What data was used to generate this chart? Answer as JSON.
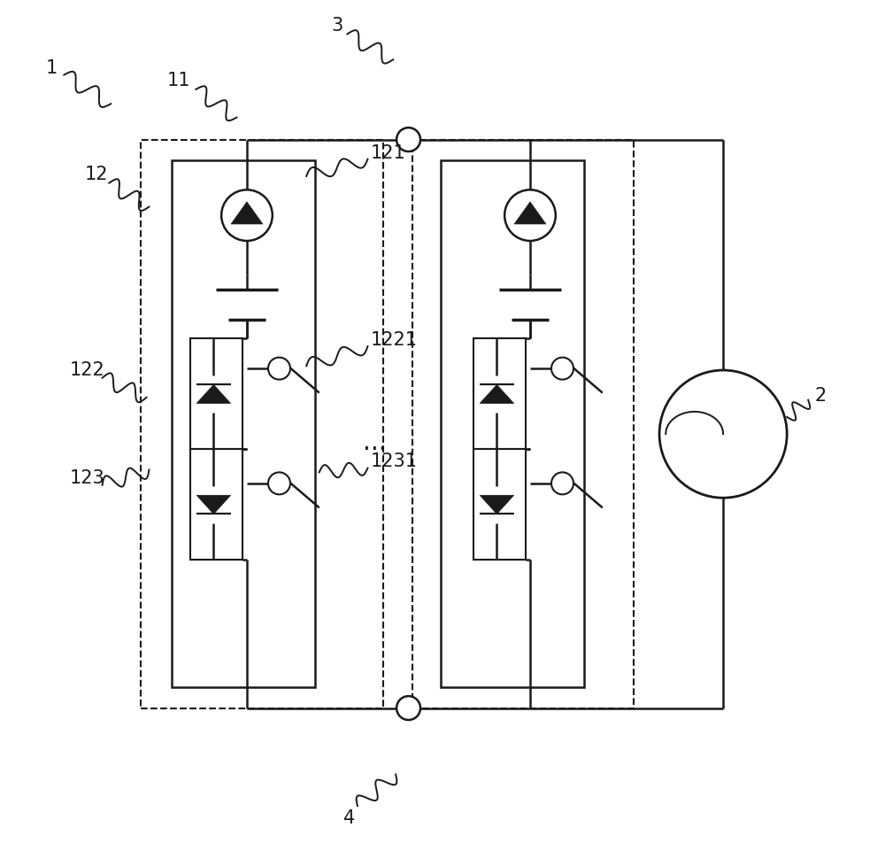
{
  "bg_color": "#ffffff",
  "line_color": "#1a1a1a",
  "fig_width": 10.0,
  "fig_height": 9.61,
  "lw": 1.8,
  "lw_thick": 2.5,
  "lw_dash": 1.5,
  "lw_inner": 1.8,
  "ammeter_r": 0.03,
  "node_r": 0.014,
  "load_r": 0.075,
  "label_fs": 15,
  "dots_fs": 20,
  "label_color": "#1a1a1a"
}
